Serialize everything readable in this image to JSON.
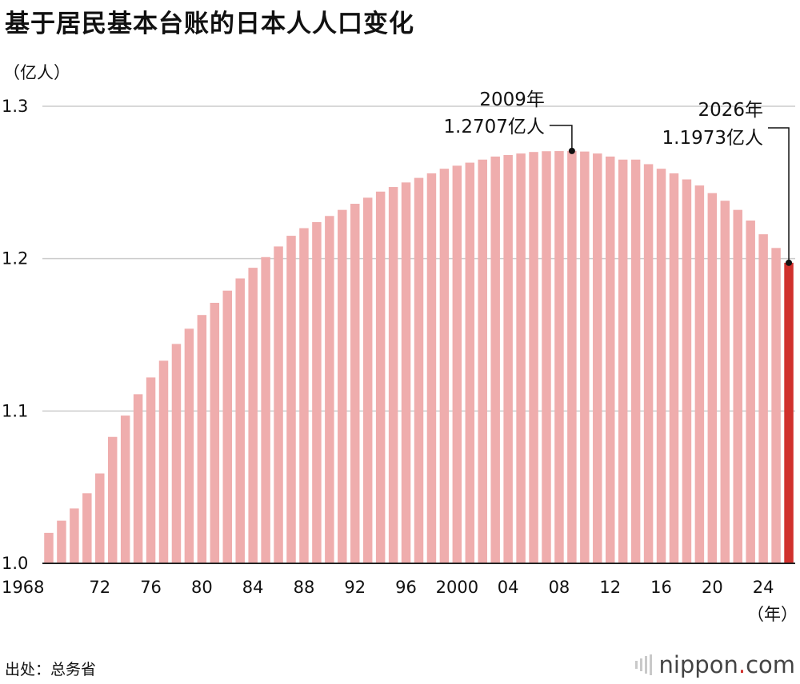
{
  "chart_data": {
    "type": "bar",
    "title": "基于居民基本台账的日本人人口变化",
    "ylabel": "（亿人）",
    "xlabel": "（年）",
    "ylim": [
      1.0,
      1.3
    ],
    "yticks": [
      "1.0",
      "1.1",
      "1.2",
      "1.3"
    ],
    "grid": true,
    "x": [
      1968,
      1969,
      1970,
      1971,
      1972,
      1973,
      1974,
      1975,
      1976,
      1977,
      1978,
      1979,
      1980,
      1981,
      1982,
      1983,
      1984,
      1985,
      1986,
      1987,
      1988,
      1989,
      1990,
      1991,
      1992,
      1993,
      1994,
      1995,
      1996,
      1997,
      1998,
      1999,
      2000,
      2001,
      2002,
      2003,
      2004,
      2005,
      2006,
      2007,
      2008,
      2009,
      2010,
      2011,
      2012,
      2013,
      2014,
      2015,
      2016,
      2017,
      2018,
      2019,
      2020,
      2021,
      2022,
      2023,
      2024,
      2025,
      2026
    ],
    "xtick_labels": [
      "1968",
      "72",
      "76",
      "80",
      "84",
      "88",
      "92",
      "96",
      "2000",
      "04",
      "08",
      "12",
      "16",
      "20",
      "24"
    ],
    "values": [
      1.02,
      1.028,
      1.036,
      1.046,
      1.059,
      1.083,
      1.097,
      1.111,
      1.122,
      1.133,
      1.144,
      1.154,
      1.163,
      1.171,
      1.179,
      1.187,
      1.194,
      1.201,
      1.208,
      1.215,
      1.22,
      1.224,
      1.228,
      1.232,
      1.236,
      1.24,
      1.244,
      1.247,
      1.25,
      1.253,
      1.256,
      1.259,
      1.261,
      1.263,
      1.265,
      1.267,
      1.268,
      1.269,
      1.27,
      1.2705,
      1.2706,
      1.2707,
      1.2703,
      1.269,
      1.267,
      1.265,
      1.265,
      1.262,
      1.259,
      1.256,
      1.252,
      1.248,
      1.243,
      1.238,
      1.232,
      1.225,
      1.216,
      1.207,
      1.1973
    ],
    "highlight_index": 58,
    "colors": {
      "bar": "#efadad",
      "highlight": "#d0312d",
      "grid": "#cccccc"
    },
    "annotations": [
      {
        "year_label": "2009年",
        "value_label": "1.2707亿人",
        "index": 41
      },
      {
        "year_label": "2026年",
        "value_label": "1.1973亿人",
        "index": 58
      }
    ]
  },
  "footer": {
    "source": "出处：总务省",
    "brand_main": "nippon",
    "brand_dot": ".",
    "brand_tld": "com"
  }
}
